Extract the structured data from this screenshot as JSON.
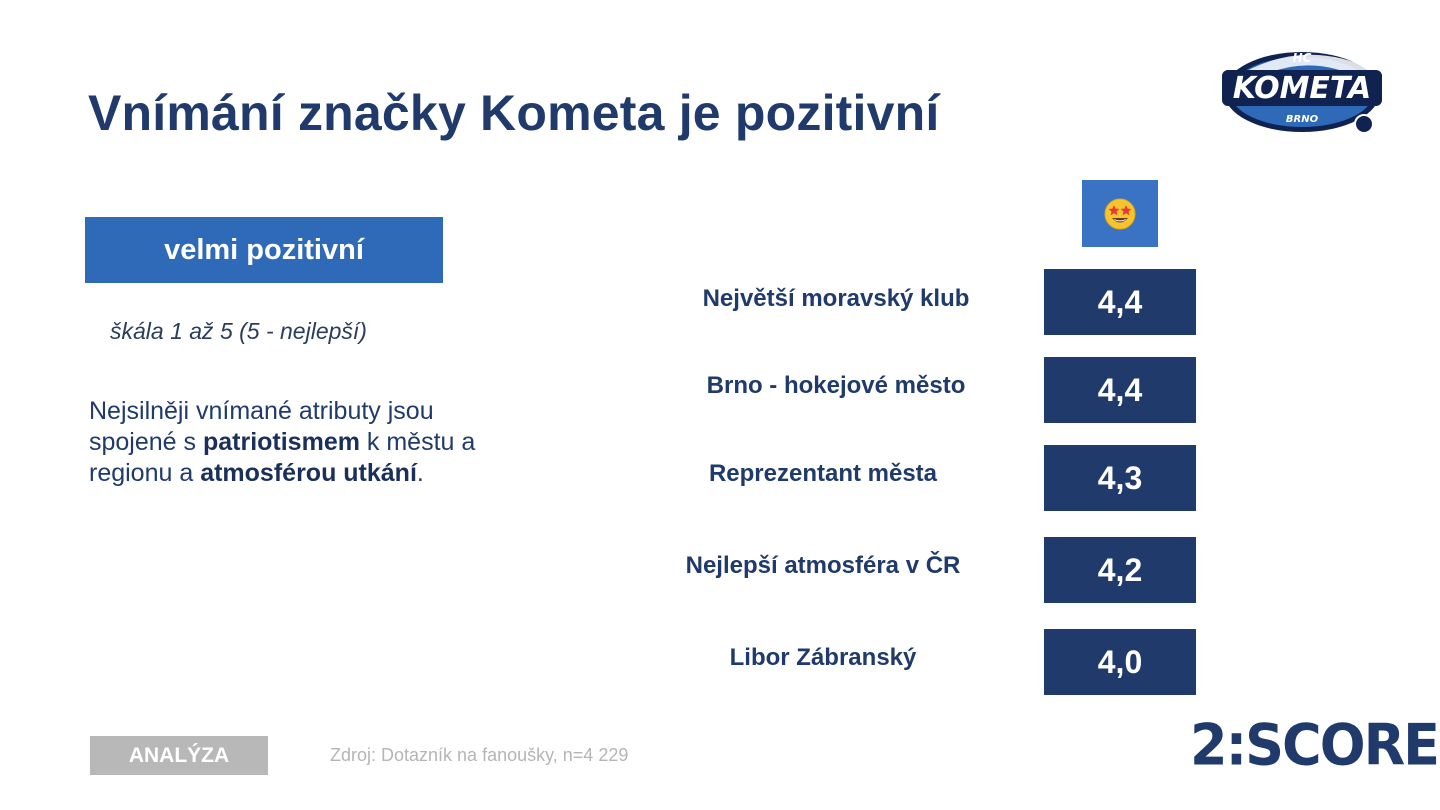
{
  "title": "Vnímání značky Kometa je pozitivní",
  "logo": {
    "hc": "HC",
    "kometa": "KOMETA",
    "brno": "BRNO"
  },
  "badge": "velmi pozitivní",
  "scale_note": "škála 1 až 5 (5 - nejlepší)",
  "description": {
    "part1": "Nejsilněji vnímané atributy jsou spojené s ",
    "bold1": "patriotismem",
    "part2": " k městu a regionu a ",
    "bold2": "atmosférou utkání",
    "part3": "."
  },
  "emoji": "🤩",
  "attributes": [
    {
      "label": "Největší moravský klub",
      "score": "4,4"
    },
    {
      "label": "Brno - hokejové město",
      "score": "4,4"
    },
    {
      "label": "Reprezentant města",
      "score": "4,3"
    },
    {
      "label": "Nejlepší atmosféra v ČR",
      "score": "4,2"
    },
    {
      "label": "Libor Zábranský",
      "score": "4,0"
    }
  ],
  "footer": {
    "tag": "ANALÝZA",
    "source": "Zdroj: Dotazník na fanoušky, n=4 229",
    "brand": "2:SCORE"
  },
  "colors": {
    "navy": "#1f3a6b",
    "blue": "#2e6ab8",
    "gray": "#b8b8b8"
  }
}
